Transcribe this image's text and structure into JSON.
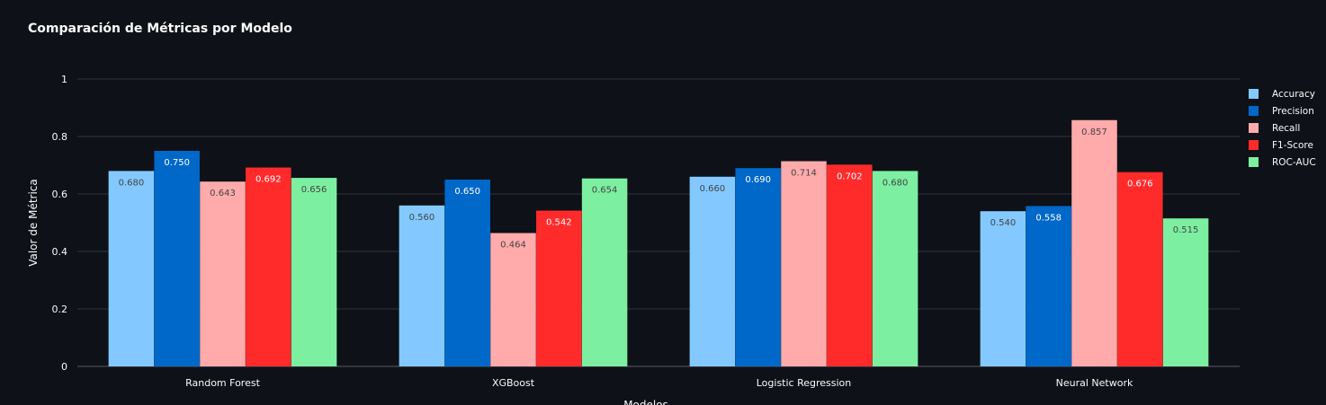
{
  "chart_data": {
    "type": "bar",
    "title": "Comparación de Métricas por Modelo",
    "xlabel": "Modelos",
    "ylabel": "Valor de Métrica",
    "ylim": [
      0,
      1
    ],
    "yticks": [
      0,
      0.2,
      0.4,
      0.6,
      0.8,
      1
    ],
    "ytick_labels": [
      "0",
      "0.2",
      "0.4",
      "0.6",
      "0.8",
      "1"
    ],
    "grid": true,
    "legend_position": "right",
    "categories": [
      "Random Forest",
      "XGBoost",
      "Logistic Regression",
      "Neural Network"
    ],
    "series": [
      {
        "name": "Accuracy",
        "color": "#83c9ff",
        "label_color": "#444444",
        "values": [
          0.68,
          0.56,
          0.66,
          0.54
        ],
        "labels": [
          "0.680",
          "0.560",
          "0.660",
          "0.540"
        ]
      },
      {
        "name": "Precision",
        "color": "#0068c9",
        "label_color": "#ffffff",
        "values": [
          0.75,
          0.65,
          0.69,
          0.558
        ],
        "labels": [
          "0.750",
          "0.650",
          "0.690",
          "0.558"
        ]
      },
      {
        "name": "Recall",
        "color": "#ffabab",
        "label_color": "#444444",
        "values": [
          0.643,
          0.464,
          0.714,
          0.857
        ],
        "labels": [
          "0.643",
          "0.464",
          "0.714",
          "0.857"
        ]
      },
      {
        "name": "F1-Score",
        "color": "#ff2b2b",
        "label_color": "#ffffff",
        "values": [
          0.692,
          0.542,
          0.702,
          0.676
        ],
        "labels": [
          "0.692",
          "0.542",
          "0.702",
          "0.676"
        ]
      },
      {
        "name": "ROC-AUC",
        "color": "#7defa1",
        "label_color": "#444444",
        "values": [
          0.656,
          0.654,
          0.68,
          0.515
        ],
        "labels": [
          "0.656",
          "0.654",
          "0.680",
          "0.515"
        ]
      }
    ]
  },
  "colors": {
    "background": "#0e1117",
    "gridline": "#31333f",
    "text": "#fafafa"
  }
}
